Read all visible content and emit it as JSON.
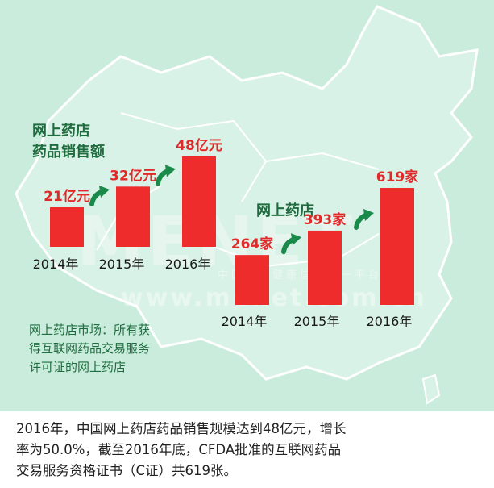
{
  "chart_data": [
    {
      "type": "bar",
      "title": "网上药店药品销售额",
      "categories": [
        "2014年",
        "2015年",
        "2016年"
      ],
      "values": [
        21,
        32,
        48
      ],
      "data_labels": [
        "21亿元",
        "32亿元",
        "48亿元"
      ],
      "unit": "亿元",
      "bar_color": "#ee2c2c"
    },
    {
      "type": "bar",
      "title": "网上药店",
      "categories": [
        "2014年",
        "2015年",
        "2016年"
      ],
      "values": [
        264,
        393,
        619
      ],
      "data_labels": [
        "264家",
        "393家",
        "619家"
      ],
      "unit": "家",
      "bar_color": "#ee2c2c"
    }
  ],
  "note": {
    "lines": [
      "网上药店市场：所有获",
      "得互联网药品交易服务",
      "许可证的网上药店"
    ]
  },
  "caption": {
    "lines": [
      "2016年，中国网上药店药品销售规模达到48亿元，增长",
      "率为50.0%，截至2016年底，CFDA批准的互联网药品",
      "交易服务资格证书（C证）共619张。"
    ]
  },
  "watermark": {
    "logo": "MENET",
    "subtitle": "中国医药健康信息第一平台",
    "url": "www.menet.com.cn"
  },
  "colors": {
    "background": "#c9ecdc",
    "title_green": "#1f6d3f",
    "arrow_green": "#1a8a4a",
    "label_red": "#e02a2a"
  }
}
